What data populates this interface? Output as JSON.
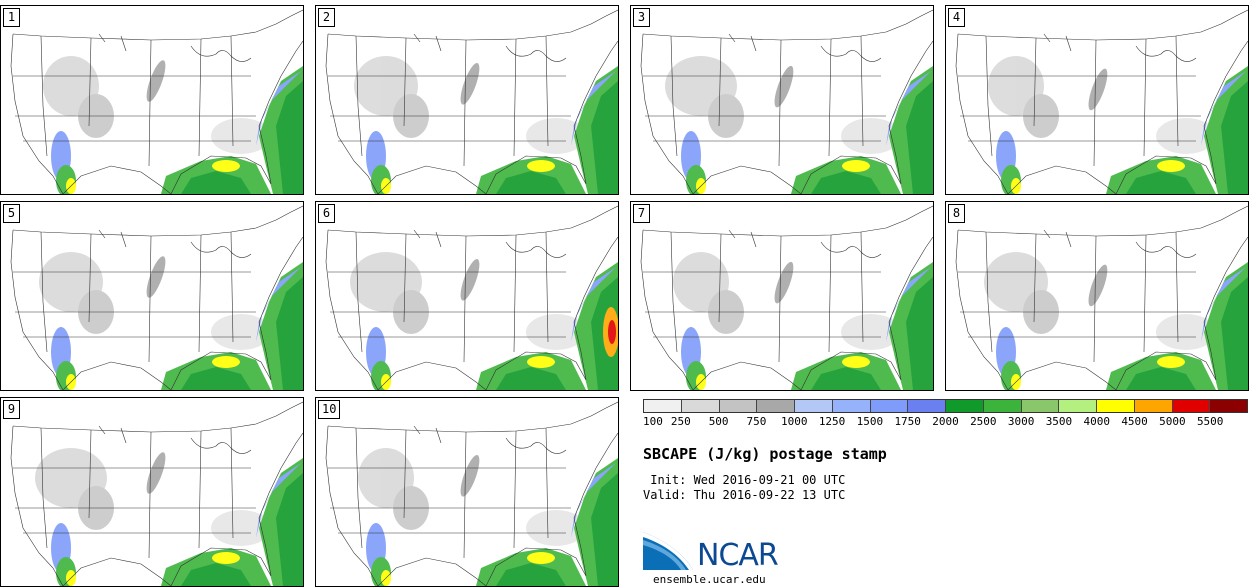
{
  "panels": [
    {
      "label": "1"
    },
    {
      "label": "2"
    },
    {
      "label": "3"
    },
    {
      "label": "4"
    },
    {
      "label": "5"
    },
    {
      "label": "6"
    },
    {
      "label": "7"
    },
    {
      "label": "8"
    },
    {
      "label": "9"
    },
    {
      "label": "10"
    }
  ],
  "colorbar": {
    "colors": [
      "#f0f0f0",
      "#d9d9d9",
      "#c3c3c3",
      "#a8a8a8",
      "#b4c8f5",
      "#96b2fa",
      "#7f9cfa",
      "#6a7ff0",
      "#109a29",
      "#3cb43c",
      "#8ac66a",
      "#b4f080",
      "#ffff00",
      "#ffa500",
      "#e00000",
      "#8b0000"
    ],
    "ticks": [
      "100",
      "250",
      "500",
      "750",
      "1000",
      "1250",
      "1500",
      "1750",
      "2000",
      "2500",
      "3000",
      "3500",
      "4000",
      "4500",
      "5000",
      "5500"
    ]
  },
  "title": "SBCAPE (J/kg) postage stamp",
  "init": " Init: Wed 2016-09-21 00 UTC",
  "valid": "Valid: Thu 2016-09-22 13 UTC",
  "logo": {
    "text": "NCAR",
    "url": "ensemble.ucar.edu",
    "color": "#0b4a93"
  }
}
